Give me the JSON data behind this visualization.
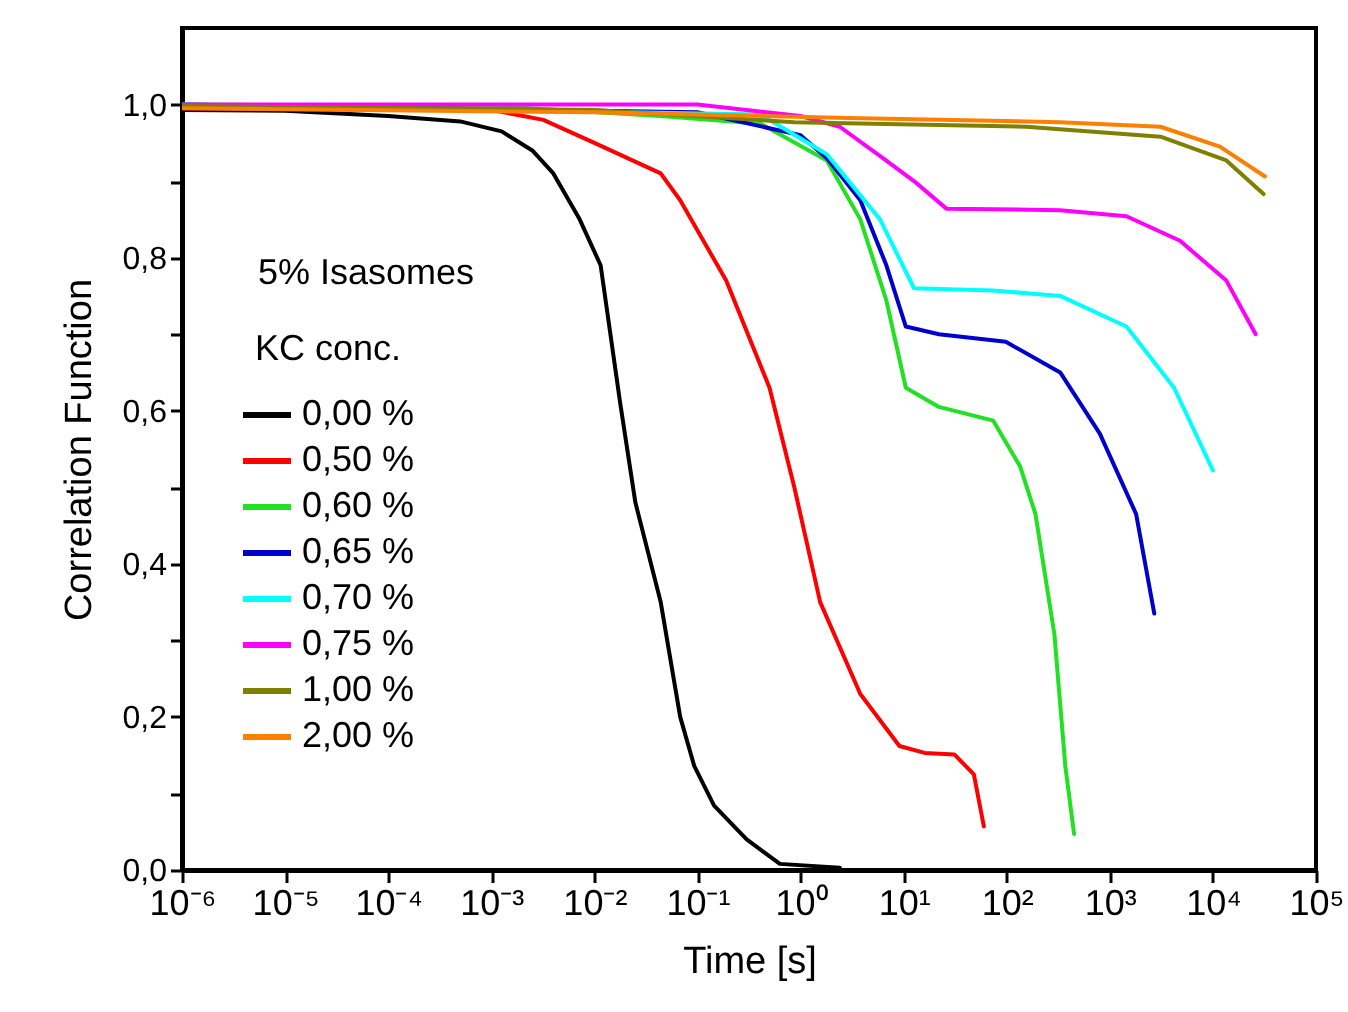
{
  "chart_data": {
    "type": "line",
    "xlabel": "Time [s]",
    "ylabel": "Correlation Function",
    "legend_title": "KC conc.",
    "annotations": [
      "5% Isasomes"
    ],
    "legend": "left",
    "log": "x",
    "line_style": "solid",
    "xlim": [
      1e-06,
      100000
    ],
    "ylim": [
      0,
      1.1
    ],
    "xticks": [
      {
        "value": 1e-06,
        "label": "10⁻⁶"
      },
      {
        "value": 1e-05,
        "label": "10⁻⁵"
      },
      {
        "value": 0.0001,
        "label": "10⁻⁴"
      },
      {
        "value": 0.001,
        "label": "10⁻³"
      },
      {
        "value": 0.01,
        "label": "10⁻²"
      },
      {
        "value": 0.1,
        "label": "10⁻¹"
      },
      {
        "value": 1,
        "label": "10⁰"
      },
      {
        "value": 10,
        "label": "10¹"
      },
      {
        "value": 100,
        "label": "10²"
      },
      {
        "value": 1000,
        "label": "10³"
      },
      {
        "value": 10000,
        "label": "10⁴"
      },
      {
        "value": 100000,
        "label": "10⁵"
      }
    ],
    "yticks": [
      {
        "value": 0,
        "label": "0,0"
      },
      {
        "value": 0.1,
        "label": null
      },
      {
        "value": 0.2,
        "label": "0,2"
      },
      {
        "value": 0.3,
        "label": null
      },
      {
        "value": 0.4,
        "label": "0,4"
      },
      {
        "value": 0.5,
        "label": null
      },
      {
        "value": 0.6,
        "label": "0,6"
      },
      {
        "value": 0.7,
        "label": null
      },
      {
        "value": 0.8,
        "label": "0,8"
      },
      {
        "value": 0.9,
        "label": null
      },
      {
        "value": 1,
        "label": "1,0"
      }
    ],
    "series": [
      {
        "name": "0,00 %",
        "color": "#000000",
        "x": [
          1e-06,
          1e-05,
          0.0001,
          0.0005,
          0.00126,
          0.0025,
          0.004,
          0.0072,
          0.0115,
          0.0178,
          0.025,
          0.044,
          0.068,
          0.093,
          0.145,
          0.3,
          0.63,
          2.4
        ],
        "values": [
          0.993,
          0.992,
          0.985,
          0.978,
          0.965,
          0.94,
          0.91,
          0.85,
          0.79,
          0.61,
          0.48,
          0.35,
          0.2,
          0.136,
          0.084,
          0.04,
          0.008,
          0.003
        ]
      },
      {
        "name": "0,50 %",
        "color": "#ff0000",
        "x": [
          1e-06,
          0.001,
          0.0032,
          0.01,
          0.044,
          0.068,
          0.19,
          0.5,
          0.87,
          1.55,
          3.8,
          9.1,
          16,
          31,
          48,
          60
        ],
        "values": [
          0.995,
          0.993,
          0.98,
          0.95,
          0.91,
          0.875,
          0.77,
          0.63,
          0.5,
          0.35,
          0.23,
          0.162,
          0.153,
          0.151,
          0.125,
          0.057
        ]
      },
      {
        "name": "0,60 %",
        "color": "#22e022",
        "x": [
          1e-06,
          0.001,
          0.044,
          0.41,
          1.8,
          3.8,
          6.8,
          10.5,
          22,
          74,
          135,
          190,
          290,
          370,
          450
        ],
        "values": [
          1.0,
          0.998,
          0.985,
          0.975,
          0.927,
          0.85,
          0.744,
          0.63,
          0.605,
          0.587,
          0.527,
          0.465,
          0.308,
          0.136,
          0.047
        ]
      },
      {
        "name": "0,65 %",
        "color": "#0000cc",
        "x": [
          1e-06,
          0.1,
          1,
          1.8,
          3.8,
          6.8,
          10.5,
          22,
          98,
          330,
          800,
          1800,
          2700
        ],
        "values": [
          1.0,
          0.99,
          0.96,
          0.93,
          0.875,
          0.79,
          0.71,
          0.7,
          0.69,
          0.65,
          0.57,
          0.465,
          0.335
        ]
      },
      {
        "name": "0,70 %",
        "color": "#00ffff",
        "x": [
          1e-06,
          0.41,
          1.8,
          5.9,
          12.6,
          74,
          330,
          1450,
          4200,
          10000
        ],
        "values": [
          1.0,
          0.987,
          0.935,
          0.85,
          0.76,
          0.757,
          0.75,
          0.71,
          0.63,
          0.522
        ]
      },
      {
        "name": "0,75 %",
        "color": "#ff00ff",
        "x": [
          1e-06,
          0.1,
          1,
          2.4,
          6.3,
          12.6,
          26,
          330,
          1450,
          4800,
          13500,
          26000
        ],
        "values": [
          1.0,
          1.0,
          0.985,
          0.971,
          0.93,
          0.9,
          0.864,
          0.862,
          0.854,
          0.822,
          0.77,
          0.7
        ]
      },
      {
        "name": "1,00 %",
        "color": "#808000",
        "x": [
          1e-06,
          0.01,
          0.87,
          155,
          3100,
          13500,
          31000
        ],
        "values": [
          0.998,
          0.993,
          0.977,
          0.971,
          0.958,
          0.927,
          0.883
        ]
      },
      {
        "name": "2,00 %",
        "color": "#ff8000",
        "x": [
          1e-06,
          0.01,
          3.8,
          330,
          3100,
          11700,
          32000
        ],
        "values": [
          0.995,
          0.99,
          0.982,
          0.977,
          0.971,
          0.945,
          0.906
        ]
      }
    ]
  }
}
